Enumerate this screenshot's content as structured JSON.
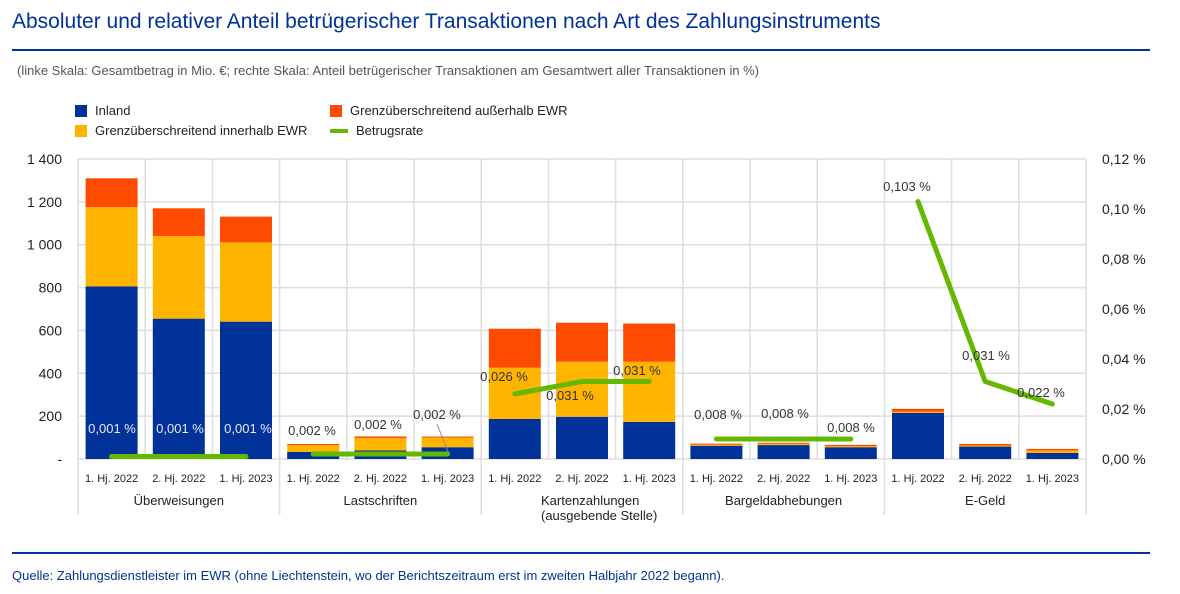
{
  "title": "Absoluter und relativer Anteil betrügerischer Transaktionen nach Art des Zahlungsinstruments",
  "subtitle": "(linke Skala: Gesamtbetrag in Mio. €; rechte Skala: Anteil betrügerischer Transaktionen am Gesamtwert aller Transaktionen in %)",
  "source": "Quelle: Zahlungsdienstleister im EWR (ohne Liechtenstein, wo der Berichtszeitraum erst im zweiten Halbjahr 2022 begann).",
  "colors": {
    "inland": "#003299",
    "innerhalb": "#FFB400",
    "ausserhalb": "#FF4B00",
    "rate": "#65B800",
    "title": "#003299"
  },
  "chart_data": {
    "type": "bar",
    "stacked": true,
    "legend": {
      "position": "top-left",
      "entries": [
        "Inland",
        "Grenzüberschreitend außerhalb EWR",
        "Grenzüberschreitend innerhalb EWR",
        "Betrugsrate"
      ]
    },
    "groups": [
      "Überweisungen",
      "Lastschriften",
      "Kartenzahlungen (ausgebende Stelle)",
      "Bargeldabhebungen",
      "E-Geld"
    ],
    "group_lines": [
      [
        "Überweisungen"
      ],
      [
        "Lastschriften"
      ],
      [
        "Kartenzahlungen",
        "(ausgebende Stelle)"
      ],
      [
        "Bargeldabhebungen"
      ],
      [
        "E-Geld"
      ]
    ],
    "periods": [
      "1. Hj. 2022",
      "2. Hj. 2022",
      "1. Hj. 2023"
    ],
    "series": [
      {
        "name": "Inland",
        "values": [
          805,
          655,
          641,
          33,
          40,
          55,
          187,
          197,
          173,
          62,
          65,
          55,
          215,
          58,
          28
        ]
      },
      {
        "name": "Grenzüberschreitend innerhalb EWR",
        "values": [
          370,
          385,
          370,
          32,
          58,
          45,
          239,
          257,
          281,
          5,
          6,
          5,
          6,
          5,
          12
        ]
      },
      {
        "name": "Grenzüberschreitend außerhalb EWR",
        "values": [
          135,
          130,
          120,
          5,
          7,
          5,
          182,
          182,
          178,
          5,
          5,
          6,
          13,
          7,
          7
        ]
      }
    ],
    "line": {
      "name": "Betrugsrate",
      "axis": "right",
      "values": [
        0.001,
        0.001,
        0.001,
        0.002,
        0.002,
        0.002,
        0.026,
        0.031,
        0.031,
        0.008,
        0.008,
        0.008,
        0.103,
        0.031,
        0.022
      ],
      "labels": [
        "0,001 %",
        "0,001 %",
        "0,001 %",
        "0,002 %",
        "0,002 %",
        "0,002 %",
        "0,026 %",
        "0,031 %",
        "0,031 %",
        "0,008 %",
        "0,008 %",
        "0,008 %",
        "0,103 %",
        "0,031 %",
        "0,022 %"
      ]
    },
    "y_left": {
      "range": [
        0,
        1400
      ],
      "ticks": [
        "-",
        "200",
        "400",
        "600",
        "800",
        "1 000",
        "1 200",
        "1 400"
      ]
    },
    "y_right": {
      "range": [
        0,
        0.12
      ],
      "ticks": [
        "0,00 %",
        "0,02 %",
        "0,04 %",
        "0,06 %",
        "0,08 %",
        "0,10 %",
        "0,12 %"
      ]
    },
    "grid": true
  }
}
